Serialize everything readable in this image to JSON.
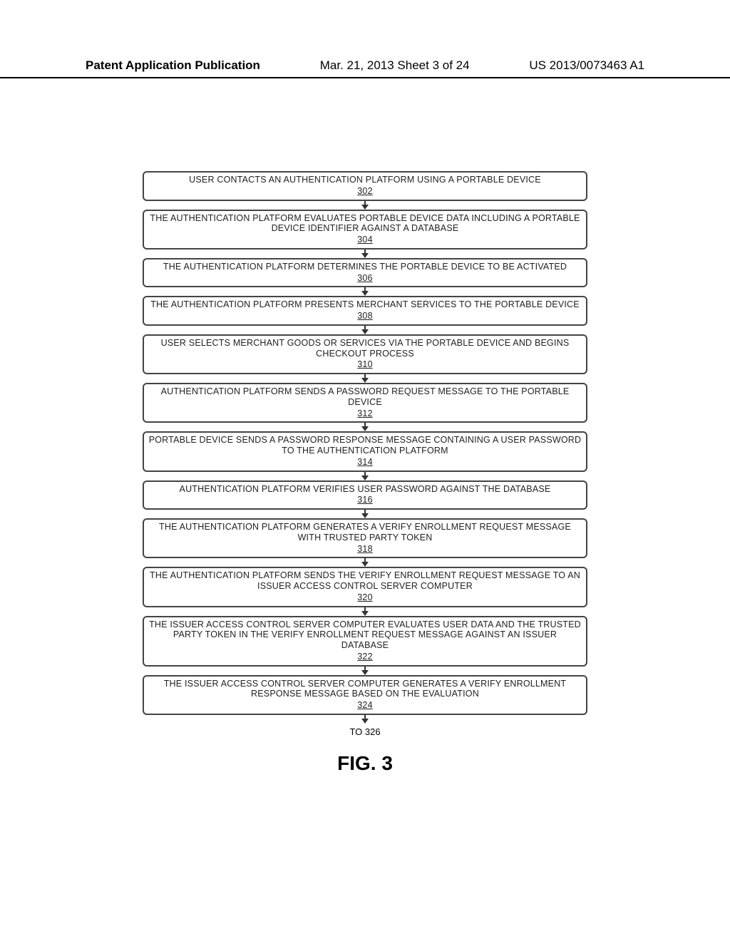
{
  "header": {
    "left": "Patent Application Publication",
    "mid": "Mar. 21, 2013  Sheet 3 of 24",
    "right": "US 2013/0073463 A1"
  },
  "flow": {
    "type": "flowchart",
    "box_border_color": "#444444",
    "box_border_radius": 6,
    "arrow_color": "#333333",
    "text_color": "#222222",
    "background_color": "#ffffff",
    "font_family": "Arial Narrow",
    "text_fontsize": 12.5,
    "steps": [
      {
        "text": "USER CONTACTS AN AUTHENTICATION PLATFORM USING A PORTABLE DEVICE",
        "ref": "302"
      },
      {
        "text": "THE AUTHENTICATION PLATFORM EVALUATES PORTABLE DEVICE DATA INCLUDING A PORTABLE DEVICE IDENTIFIER AGAINST A DATABASE",
        "ref": "304"
      },
      {
        "text": "THE AUTHENTICATION PLATFORM DETERMINES THE PORTABLE DEVICE TO BE ACTIVATED",
        "ref": "306"
      },
      {
        "text": "THE AUTHENTICATION PLATFORM PRESENTS MERCHANT SERVICES TO THE PORTABLE DEVICE",
        "ref": "308"
      },
      {
        "text": "USER SELECTS MERCHANT GOODS OR SERVICES VIA THE PORTABLE DEVICE AND BEGINS CHECKOUT PROCESS",
        "ref": "310"
      },
      {
        "text": "AUTHENTICATION PLATFORM SENDS A PASSWORD REQUEST MESSAGE TO THE PORTABLE DEVICE",
        "ref": "312"
      },
      {
        "text": "PORTABLE DEVICE SENDS A PASSWORD RESPONSE MESSAGE CONTAINING A USER PASSWORD TO THE AUTHENTICATION PLATFORM",
        "ref": "314"
      },
      {
        "text": "AUTHENTICATION PLATFORM VERIFIES USER PASSWORD AGAINST THE DATABASE",
        "ref": "316"
      },
      {
        "text": "THE AUTHENTICATION PLATFORM GENERATES A VERIFY ENROLLMENT REQUEST MESSAGE WITH TRUSTED PARTY TOKEN",
        "ref": "318"
      },
      {
        "text": "THE AUTHENTICATION PLATFORM SENDS THE VERIFY ENROLLMENT REQUEST MESSAGE TO AN ISSUER ACCESS CONTROL SERVER COMPUTER",
        "ref": "320"
      },
      {
        "text": "THE ISSUER ACCESS CONTROL SERVER COMPUTER EVALUATES USER DATA AND THE TRUSTED PARTY TOKEN IN THE VERIFY ENROLLMENT REQUEST MESSAGE AGAINST AN ISSUER DATABASE",
        "ref": "322"
      },
      {
        "text": "THE ISSUER ACCESS CONTROL SERVER COMPUTER GENERATES A VERIFY ENROLLMENT RESPONSE MESSAGE BASED ON THE EVALUATION",
        "ref": "324"
      }
    ],
    "continuation": "TO 326"
  },
  "figure_label": "FIG. 3"
}
